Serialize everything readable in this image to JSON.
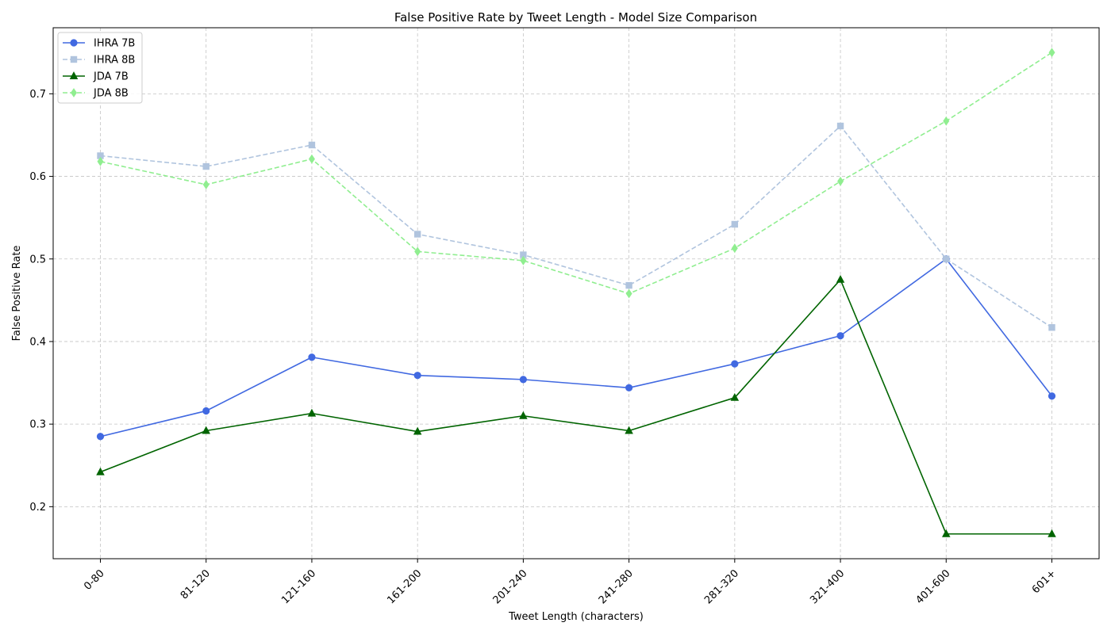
{
  "chart_data": {
    "type": "line",
    "title": "False Positive Rate by Tweet Length - Model Size Comparison",
    "xlabel": "Tweet Length (characters)",
    "ylabel": "False Positive Rate",
    "categories": [
      "0-80",
      "81-120",
      "121-160",
      "161-200",
      "201-240",
      "241-280",
      "281-320",
      "321-400",
      "401-600",
      "601+"
    ],
    "ylim": [
      0.137,
      0.78
    ],
    "yticks": [
      0.2,
      0.3,
      0.4,
      0.5,
      0.6,
      0.7
    ],
    "ytick_labels": [
      "0.2",
      "0.3",
      "0.4",
      "0.5",
      "0.6",
      "0.7"
    ],
    "grid": true,
    "legend_position": "top-left",
    "series": [
      {
        "name": "IHRA 7B",
        "color": "#4169e1",
        "dash": "solid",
        "marker": "circle",
        "values": [
          0.285,
          0.316,
          0.381,
          0.359,
          0.354,
          0.344,
          0.373,
          0.407,
          0.5,
          0.334
        ]
      },
      {
        "name": "IHRA 8B",
        "color": "#b0c4de",
        "dash": "dashed",
        "marker": "square",
        "values": [
          0.625,
          0.612,
          0.638,
          0.53,
          0.505,
          0.468,
          0.542,
          0.661,
          0.5,
          0.417
        ]
      },
      {
        "name": "JDA 7B",
        "color": "#006400",
        "dash": "solid",
        "marker": "triangle",
        "values": [
          0.242,
          0.292,
          0.313,
          0.291,
          0.31,
          0.292,
          0.332,
          0.475,
          0.167,
          0.167
        ]
      },
      {
        "name": "JDA 8B",
        "color": "#90ee90",
        "dash": "dashed",
        "marker": "diamond",
        "values": [
          0.618,
          0.59,
          0.621,
          0.509,
          0.498,
          0.458,
          0.513,
          0.594,
          0.667,
          0.75
        ]
      }
    ]
  }
}
